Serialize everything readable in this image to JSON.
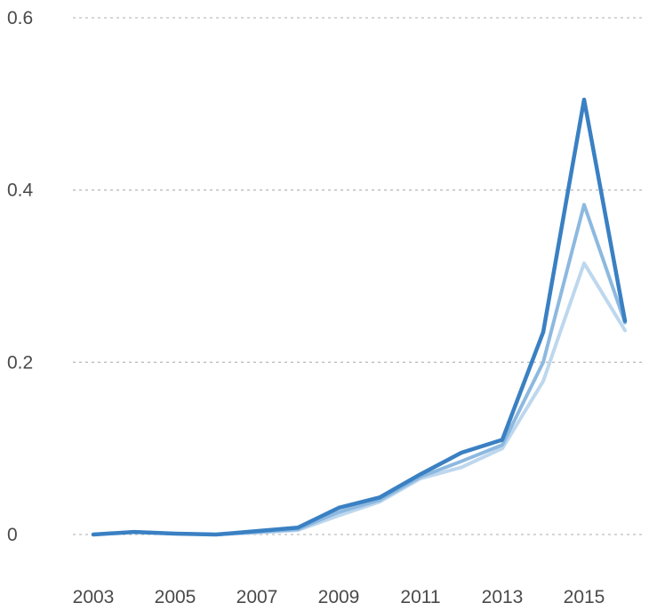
{
  "chart_data": {
    "type": "line",
    "title": "",
    "xlabel": "",
    "ylabel": "",
    "x": [
      2003,
      2004,
      2005,
      2006,
      2007,
      2008,
      2009,
      2010,
      2011,
      2012,
      2013,
      2014,
      2015,
      2016
    ],
    "xlim": [
      2002.5,
      2016.5
    ],
    "ylim": [
      0,
      0.6
    ],
    "y_ticks": [
      {
        "value": 0,
        "label": "0"
      },
      {
        "value": 0.2,
        "label": "0.2"
      },
      {
        "value": 0.4,
        "label": "0.4"
      },
      {
        "value": 0.6,
        "label": "0.6"
      }
    ],
    "x_ticks": [
      {
        "value": 2003,
        "label": "2003"
      },
      {
        "value": 2005,
        "label": "2005"
      },
      {
        "value": 2007,
        "label": "2007"
      },
      {
        "value": 2009,
        "label": "2009"
      },
      {
        "value": 2011,
        "label": "2011"
      },
      {
        "value": 2013,
        "label": "2013"
      },
      {
        "value": 2015,
        "label": "2015"
      }
    ],
    "grid": "horizontal dotted",
    "series": [
      {
        "color": "#bdd7ee",
        "width": 4,
        "values": [
          0.0,
          0.003,
          0.001,
          0.0,
          0.002,
          0.005,
          0.022,
          0.038,
          0.065,
          0.078,
          0.1,
          0.178,
          0.315,
          0.237
        ]
      },
      {
        "color": "#8db9e0",
        "width": 4,
        "values": [
          0.0,
          0.003,
          0.001,
          0.0,
          0.003,
          0.006,
          0.026,
          0.04,
          0.067,
          0.085,
          0.104,
          0.2,
          0.383,
          0.246
        ]
      },
      {
        "color": "#3a80c3",
        "width": 4.5,
        "values": [
          0.0,
          0.003,
          0.001,
          0.0,
          0.004,
          0.008,
          0.031,
          0.043,
          0.07,
          0.095,
          0.11,
          0.235,
          0.505,
          0.248
        ]
      }
    ]
  }
}
